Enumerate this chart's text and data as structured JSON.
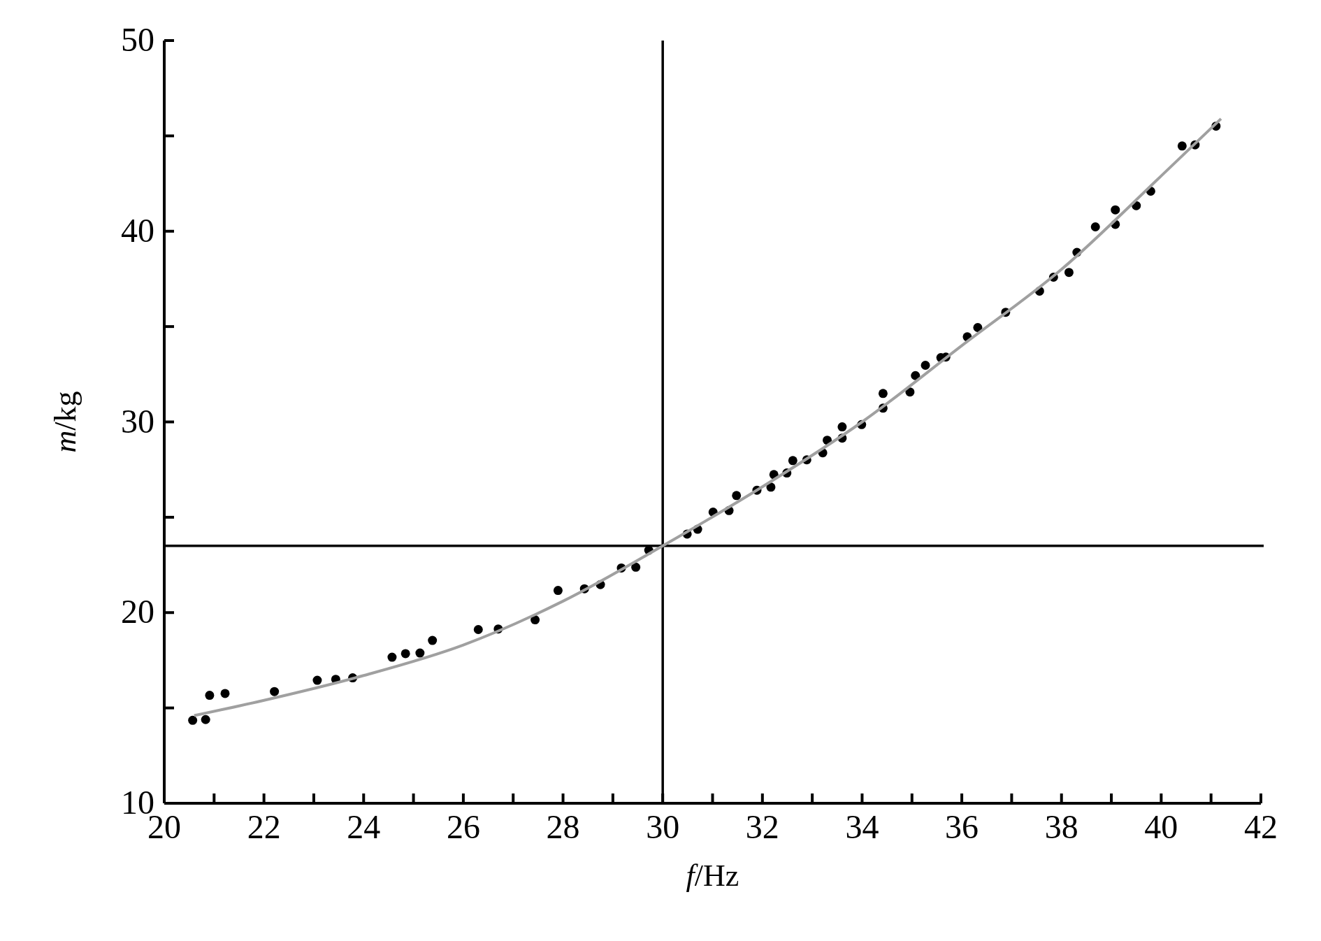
{
  "chart_data": {
    "type": "scatter",
    "xlabel": "f/Hz",
    "ylabel": "m/kg",
    "marker": "circle",
    "grid": false,
    "xlim": [
      20,
      42
    ],
    "ylim": [
      10,
      50
    ],
    "xticks": [
      20,
      {
        "value": 21,
        "label": null
      },
      22,
      {
        "value": 23,
        "label": null
      },
      24,
      {
        "value": 25,
        "label": null
      },
      26,
      {
        "value": 27,
        "label": null
      },
      28,
      {
        "value": 29,
        "label": null
      },
      30,
      {
        "value": 31,
        "label": null
      },
      32,
      {
        "value": 33,
        "label": null
      },
      34,
      {
        "value": 35,
        "label": null
      },
      36,
      {
        "value": 37,
        "label": null
      },
      38,
      {
        "value": 39,
        "label": null
      },
      40,
      {
        "value": 41,
        "label": null
      },
      42
    ],
    "yticks": [
      10,
      {
        "value": 15,
        "label": null
      },
      20,
      {
        "value": 25,
        "label": null
      },
      30,
      {
        "value": 35,
        "label": null
      },
      40,
      {
        "value": 45,
        "label": null
      },
      50
    ],
    "ref_lines": [
      {
        "axis": "x",
        "value": 30,
        "color": "#000000"
      },
      {
        "axis": "y",
        "value": 23.5,
        "color": "#000000"
      }
    ],
    "series": [
      {
        "color": "#000000",
        "x": [
          20.57,
          20.83,
          20.91,
          21.22,
          22.21,
          23.07,
          23.44,
          23.78,
          24.57,
          24.84,
          25.13,
          25.38,
          26.3,
          26.7,
          27.44,
          27.9,
          28.43,
          28.75,
          29.17,
          29.46,
          29.72,
          30.49,
          30.7,
          31.01,
          31.33,
          31.48,
          31.89,
          32.17,
          32.23,
          32.49,
          32.61,
          32.89,
          33.21,
          33.3,
          33.6,
          33.6,
          33.99,
          34.42,
          34.42,
          34.96,
          35.07,
          35.27,
          35.58,
          35.68,
          36.11,
          36.32,
          36.88,
          37.56,
          37.84,
          38.15,
          38.31,
          38.68,
          39.08,
          39.08,
          39.5,
          39.79,
          40.42,
          40.68,
          41.1
        ],
        "values": [
          14.35,
          14.39,
          15.66,
          15.76,
          15.86,
          16.45,
          16.5,
          16.58,
          17.66,
          17.85,
          17.88,
          18.54,
          19.11,
          19.14,
          19.62,
          21.16,
          21.25,
          21.47,
          22.34,
          22.38,
          23.27,
          24.12,
          24.37,
          25.27,
          25.35,
          26.14,
          26.42,
          26.58,
          27.24,
          27.32,
          27.97,
          28.01,
          28.38,
          29.04,
          29.15,
          29.74,
          29.86,
          30.72,
          31.49,
          31.57,
          32.43,
          32.97,
          33.37,
          33.4,
          34.46,
          34.95,
          35.75,
          36.86,
          37.59,
          37.84,
          38.89,
          40.23,
          40.36,
          41.12,
          41.34,
          42.1,
          44.47,
          44.53,
          45.51
        ]
      },
      {
        "type": "line",
        "color": "#a0a0a0",
        "marker": "none",
        "x": [
          20.6,
          22,
          24,
          26,
          28,
          30,
          32,
          34,
          36,
          38,
          40,
          41.2
        ],
        "values": [
          14.6,
          15.4,
          16.7,
          18.3,
          20.6,
          23.5,
          26.6,
          30.0,
          34.0,
          38.0,
          42.9,
          45.9
        ]
      }
    ]
  }
}
